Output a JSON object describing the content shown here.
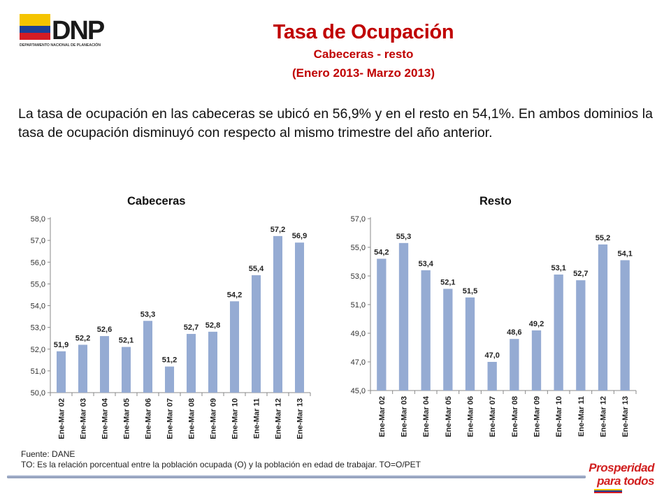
{
  "logo": {
    "name": "DNP",
    "caption": "DEPARTAMENTO NACIONAL DE PLANEACIÓN"
  },
  "header": {
    "title": "Tasa de Ocupación",
    "subtitle": "Cabeceras - resto",
    "period": "(Enero 2013- Marzo 2013)"
  },
  "body_text": "La tasa de ocupación en las cabeceras se ubicó en 56,9% y en el resto en 54,1%. En ambos dominios la tasa de ocupación disminuyó con respecto al mismo trimestre del año anterior.",
  "chart_data": [
    {
      "type": "bar",
      "title": "Cabeceras",
      "categories": [
        "Ene-Mar 02",
        "Ene-Mar 03",
        "Ene-Mar 04",
        "Ene-Mar 05",
        "Ene-Mar 06",
        "Ene-Mar 07",
        "Ene-Mar 08",
        "Ene-Mar 09",
        "Ene-Mar 10",
        "Ene-Mar 11",
        "Ene-Mar 12",
        "Ene-Mar 13"
      ],
      "values": [
        51.9,
        52.2,
        52.6,
        52.1,
        53.3,
        51.2,
        52.7,
        52.8,
        54.2,
        55.4,
        57.2,
        56.9
      ],
      "value_labels": [
        "51,9",
        "52,2",
        "52,6",
        "52,1",
        "53,3",
        "51,2",
        "52,7",
        "52,8",
        "54,2",
        "55,4",
        "57,2",
        "56,9"
      ],
      "ylim": [
        50,
        58
      ],
      "yticks": [
        50,
        51,
        52,
        53,
        54,
        55,
        56,
        57,
        58
      ],
      "ytick_labels": [
        "50,0",
        "51,0",
        "52,0",
        "53,0",
        "54,0",
        "55,0",
        "56,0",
        "57,0",
        "58,0"
      ],
      "xlabel": "",
      "ylabel": "",
      "grid": false,
      "legend": "none",
      "bar_color": "#95abd3"
    },
    {
      "type": "bar",
      "title": "Resto",
      "categories": [
        "Ene-Mar 02",
        "Ene-Mar 03",
        "Ene-Mar 04",
        "Ene-Mar 05",
        "Ene-Mar 06",
        "Ene-Mar 07",
        "Ene-Mar 08",
        "Ene-Mar 09",
        "Ene-Mar 10",
        "Ene-Mar 11",
        "Ene-Mar 12",
        "Ene-Mar 13"
      ],
      "values": [
        54.2,
        55.3,
        53.4,
        52.1,
        51.5,
        47.0,
        48.6,
        49.2,
        53.1,
        52.7,
        55.2,
        54.1
      ],
      "value_labels": [
        "54,2",
        "55,3",
        "53,4",
        "52,1",
        "51,5",
        "47,0",
        "48,6",
        "49,2",
        "53,1",
        "52,7",
        "55,2",
        "54,1"
      ],
      "ylim": [
        45,
        57
      ],
      "yticks": [
        45,
        47,
        49,
        51,
        53,
        55,
        57
      ],
      "ytick_labels": [
        "45,0",
        "47,0",
        "49,0",
        "51,0",
        "53,0",
        "55,0",
        "57,0"
      ],
      "xlabel": "",
      "ylabel": "",
      "grid": false,
      "legend": "none",
      "bar_color": "#95abd3"
    }
  ],
  "footer": {
    "source": "Fuente: DANE",
    "note": "TO: Es la relación porcentual entre la población ocupada (O) y la población  en edad de trabajar. TO=O/PET",
    "brand_line1": "Prosperidad",
    "brand_line2": "para todos"
  }
}
